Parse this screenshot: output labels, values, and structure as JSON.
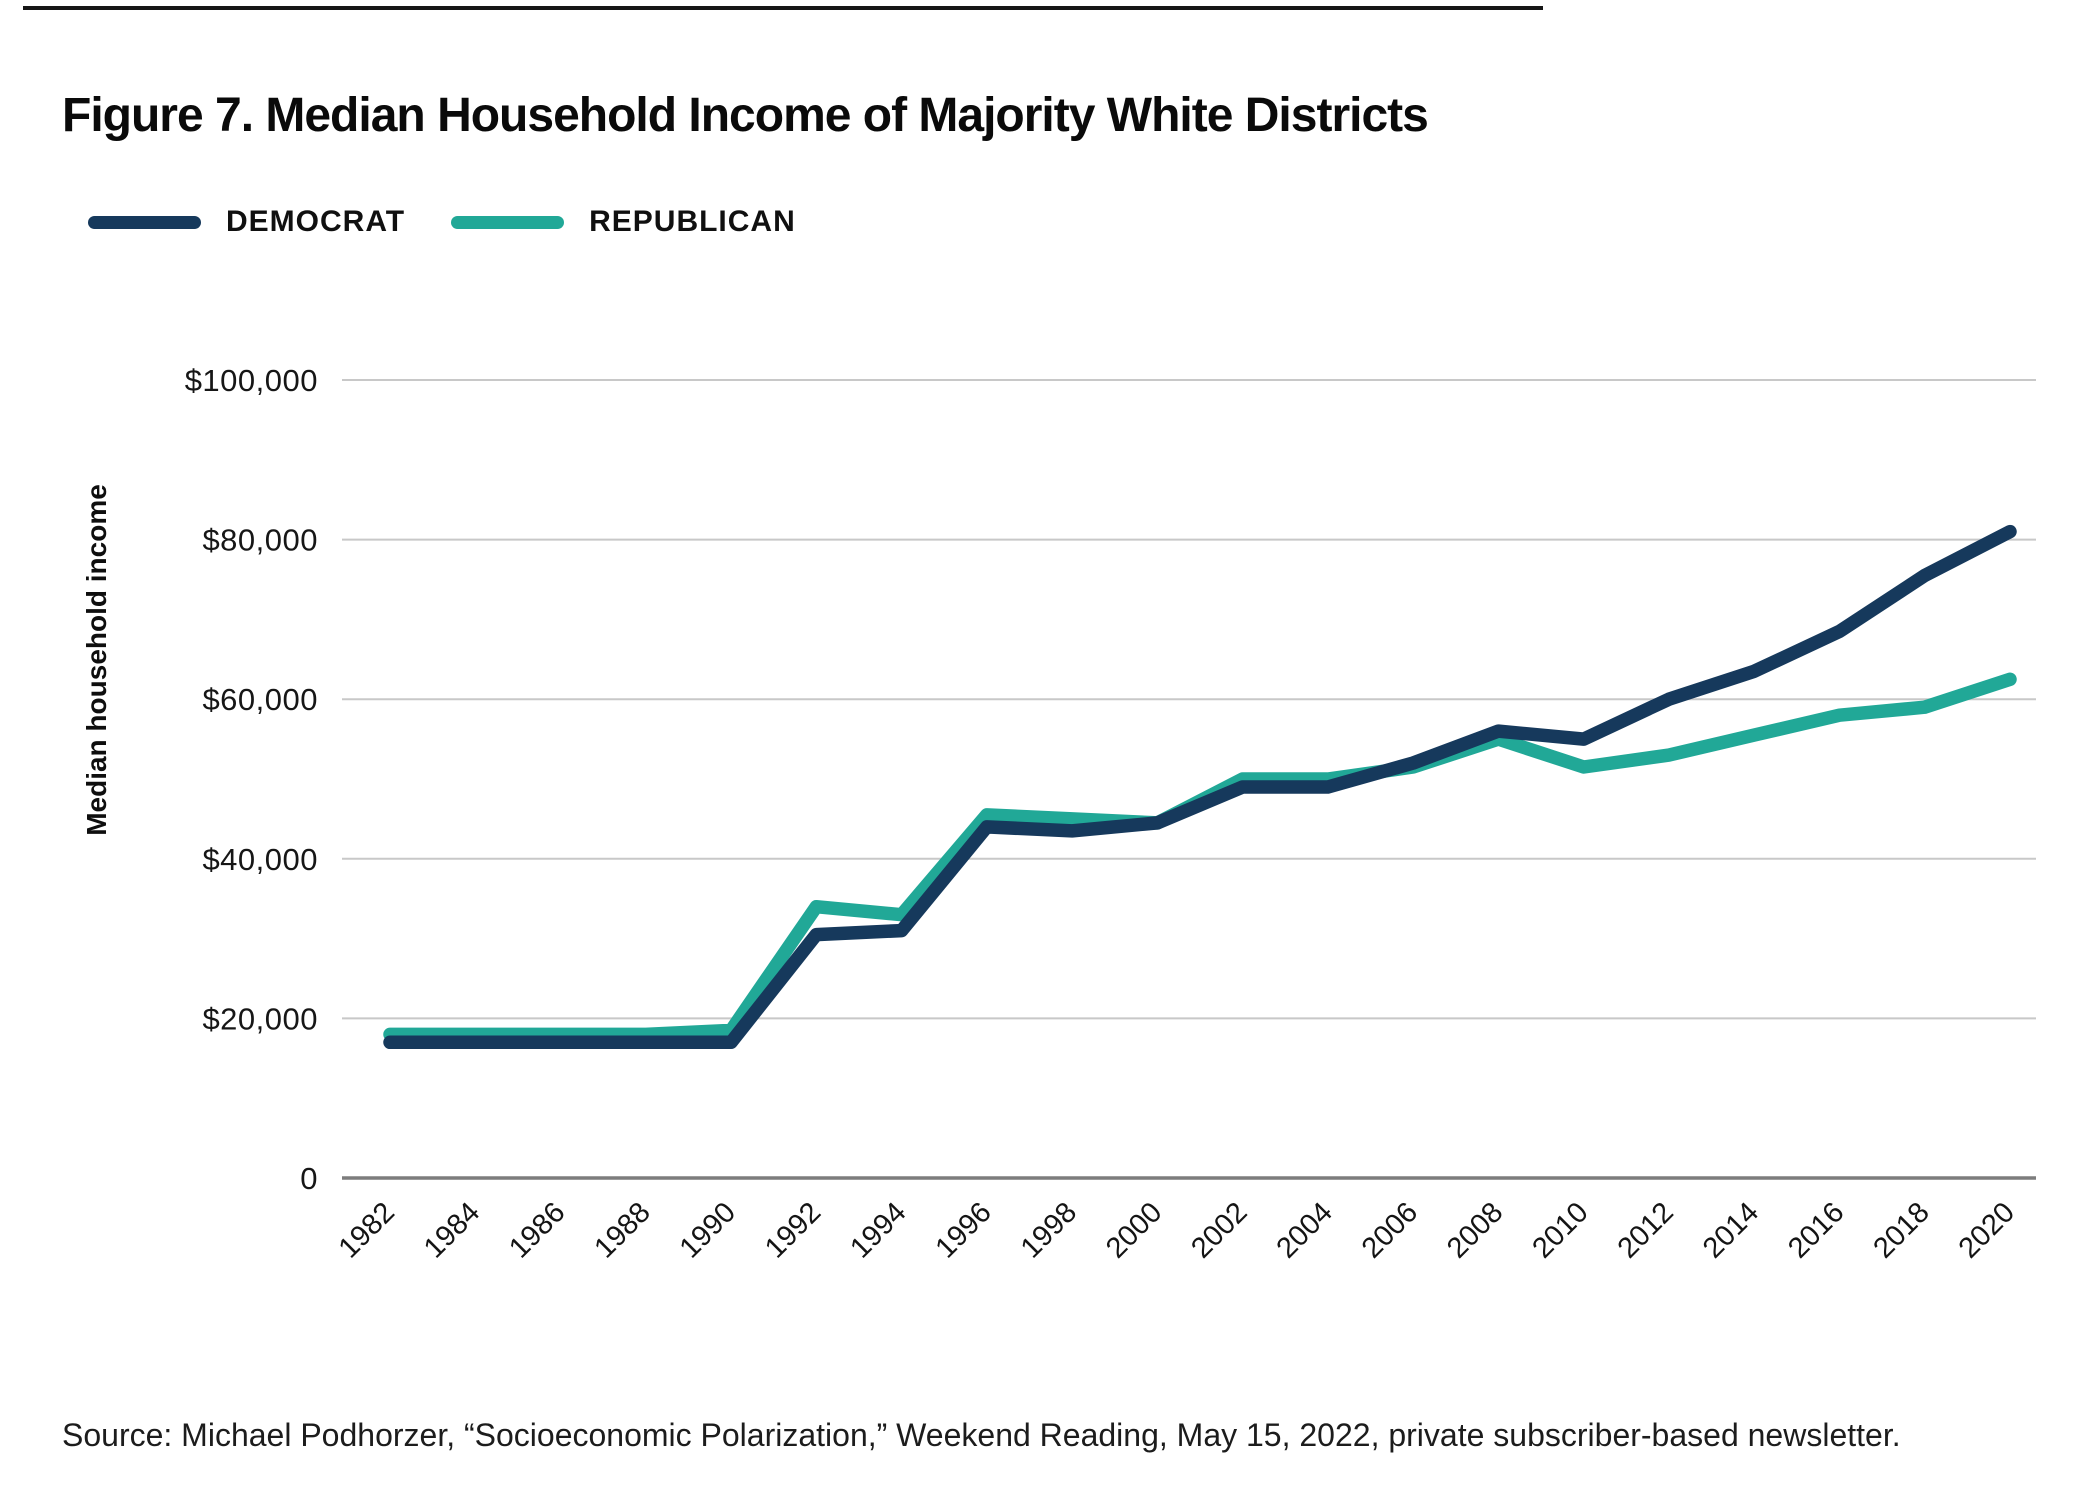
{
  "figure": {
    "title": "Figure 7. Median Household Income of Majority White Districts",
    "source": "Source: Michael Podhorzer, “Socioeconomic Polarization,” Weekend Reading, May 15, 2022, private subscriber-based newsletter."
  },
  "legend": [
    {
      "label": "DEMOCRAT",
      "color": "#16395C"
    },
    {
      "label": "REPUBLICAN",
      "color": "#21A897"
    }
  ],
  "chart_data": {
    "type": "line",
    "title": "Figure 7. Median Household Income of Majority White Districts",
    "x": [
      1982,
      1984,
      1986,
      1988,
      1990,
      1992,
      1994,
      1996,
      1998,
      2000,
      2002,
      2004,
      2006,
      2008,
      2010,
      2012,
      2014,
      2016,
      2018,
      2020
    ],
    "series": [
      {
        "name": "Republican",
        "color": "#21A897",
        "values": [
          18000,
          18000,
          18000,
          18000,
          18500,
          34000,
          33000,
          45500,
          45000,
          44500,
          50000,
          50000,
          51500,
          55000,
          51500,
          53000,
          55500,
          58000,
          59000,
          62500
        ]
      },
      {
        "name": "Democrat",
        "color": "#16395C",
        "values": [
          17000,
          17000,
          17000,
          17000,
          17000,
          30500,
          31000,
          44000,
          43500,
          44500,
          49000,
          49000,
          52000,
          56000,
          55000,
          60000,
          63500,
          68500,
          75500,
          81000
        ]
      }
    ],
    "xlabel": "",
    "ylabel": "Median household income",
    "ylim": [
      0,
      100000
    ],
    "yticks": [
      0,
      20000,
      40000,
      60000,
      80000,
      100000
    ],
    "ytick_labels": [
      "0",
      "$20,000",
      "$40,000",
      "$60,000",
      "$80,000",
      "$100,000"
    ],
    "grid": true,
    "legend_position": "top-left",
    "colors": {
      "gridline": "#c8c8c8",
      "zero_axis": "#7d7d7d",
      "text": "#161616"
    }
  }
}
